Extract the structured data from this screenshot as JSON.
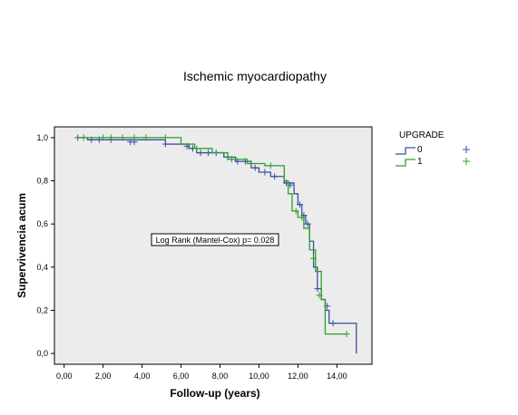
{
  "chart_data": {
    "type": "line",
    "title": "Ischemic myocardiopathy",
    "xlabel": "Follow-up (years)",
    "ylabel": "Supervivencia acum",
    "xlim": [
      -0.5,
      15.8
    ],
    "ylim": [
      -0.05,
      1.05
    ],
    "x_ticks": [
      0,
      2,
      4,
      6,
      8,
      10,
      12,
      14
    ],
    "x_tick_labels": [
      "0,00",
      "2,00",
      "4,00",
      "6,00",
      "8,00",
      "10,00",
      "12,00",
      "14,00"
    ],
    "y_ticks": [
      0,
      0.2,
      0.4,
      0.6,
      0.8,
      1.0
    ],
    "y_tick_labels": [
      "0,0",
      "0,2",
      "0,4",
      "0,6",
      "0,8",
      "1,0"
    ],
    "grid": false,
    "legend": {
      "title": "UPGRADE",
      "placement": "right",
      "entries": [
        "0",
        "1"
      ]
    },
    "annotation": "Log Rank (Mantel-Cox) p= 0.028",
    "series": [
      {
        "name": "0",
        "color": "#3b4ea0",
        "steps": [
          [
            0.7,
            1.0
          ],
          [
            1.2,
            0.99
          ],
          [
            5.2,
            0.97
          ],
          [
            6.4,
            0.95
          ],
          [
            6.8,
            0.93
          ],
          [
            8.2,
            0.91
          ],
          [
            8.8,
            0.89
          ],
          [
            9.6,
            0.86
          ],
          [
            10.0,
            0.84
          ],
          [
            10.6,
            0.82
          ],
          [
            11.3,
            0.79
          ],
          [
            11.8,
            0.74
          ],
          [
            12.0,
            0.69
          ],
          [
            12.2,
            0.64
          ],
          [
            12.4,
            0.6
          ],
          [
            12.6,
            0.52
          ],
          [
            12.8,
            0.4
          ],
          [
            13.0,
            0.3
          ],
          [
            13.2,
            0.25
          ],
          [
            13.4,
            0.2
          ],
          [
            13.6,
            0.14
          ],
          [
            14.0,
            0.14
          ],
          [
            15.0,
            0.14
          ],
          [
            15.0,
            0.0
          ]
        ],
        "censored": [
          [
            0.7,
            1.0
          ],
          [
            1.4,
            0.99
          ],
          [
            1.8,
            0.99
          ],
          [
            2.4,
            0.99
          ],
          [
            3.4,
            0.98
          ],
          [
            3.6,
            0.98
          ],
          [
            5.2,
            0.97
          ],
          [
            6.3,
            0.96
          ],
          [
            6.6,
            0.95
          ],
          [
            7.0,
            0.93
          ],
          [
            7.4,
            0.93
          ],
          [
            7.8,
            0.93
          ],
          [
            8.4,
            0.91
          ],
          [
            8.9,
            0.89
          ],
          [
            9.3,
            0.89
          ],
          [
            9.8,
            0.86
          ],
          [
            10.3,
            0.84
          ],
          [
            10.8,
            0.82
          ],
          [
            11.4,
            0.79
          ],
          [
            11.6,
            0.78
          ],
          [
            12.1,
            0.69
          ],
          [
            12.3,
            0.64
          ],
          [
            12.5,
            0.6
          ],
          [
            13.0,
            0.3
          ],
          [
            13.5,
            0.22
          ],
          [
            13.8,
            0.14
          ]
        ]
      },
      {
        "name": "1",
        "color": "#2ca02c",
        "steps": [
          [
            0.7,
            1.0
          ],
          [
            5.8,
            1.0
          ],
          [
            6.0,
            0.97
          ],
          [
            6.7,
            0.95
          ],
          [
            7.6,
            0.93
          ],
          [
            8.4,
            0.9
          ],
          [
            9.4,
            0.88
          ],
          [
            10.3,
            0.87
          ],
          [
            10.9,
            0.87
          ],
          [
            11.3,
            0.8
          ],
          [
            11.5,
            0.74
          ],
          [
            11.7,
            0.66
          ],
          [
            12.0,
            0.63
          ],
          [
            12.3,
            0.58
          ],
          [
            12.6,
            0.48
          ],
          [
            12.9,
            0.38
          ],
          [
            13.2,
            0.25
          ],
          [
            13.4,
            0.09
          ],
          [
            14.5,
            0.09
          ]
        ],
        "censored": [
          [
            1.0,
            1.0
          ],
          [
            2.0,
            1.0
          ],
          [
            2.4,
            1.0
          ],
          [
            3.0,
            1.0
          ],
          [
            3.6,
            1.0
          ],
          [
            4.2,
            1.0
          ],
          [
            5.2,
            1.0
          ],
          [
            6.8,
            0.95
          ],
          [
            8.6,
            0.9
          ],
          [
            9.6,
            0.88
          ],
          [
            10.6,
            0.87
          ],
          [
            11.9,
            0.66
          ],
          [
            12.2,
            0.63
          ],
          [
            12.8,
            0.44
          ],
          [
            13.1,
            0.27
          ],
          [
            14.5,
            0.09
          ]
        ]
      }
    ]
  }
}
